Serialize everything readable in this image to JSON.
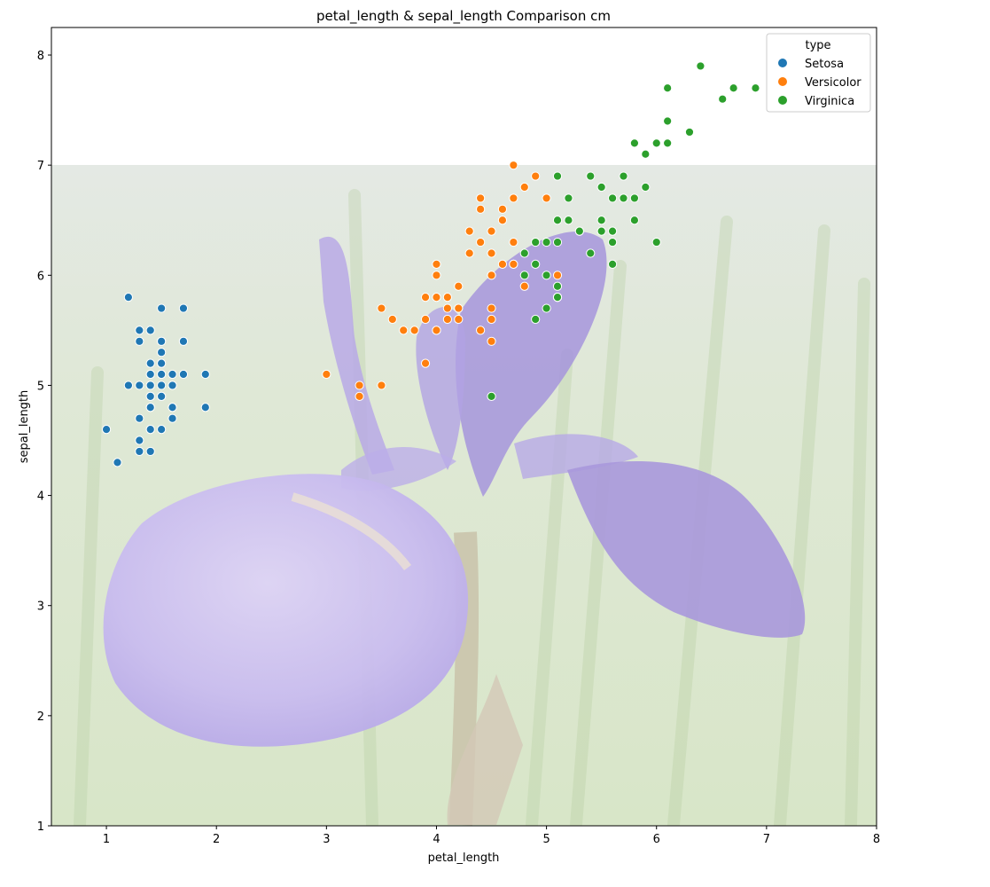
{
  "chart_data": {
    "type": "scatter",
    "title": "petal_length & sepal_length Comparison cm",
    "xlabel": "petal_length",
    "ylabel": "sepal_length",
    "xlim": [
      0.5,
      8
    ],
    "ylim": [
      1,
      8.25
    ],
    "xticks": [
      1,
      2,
      3,
      4,
      5,
      6,
      7,
      8
    ],
    "yticks": [
      1,
      2,
      3,
      4,
      5,
      6,
      7,
      8
    ],
    "grid": false,
    "background_image": "iris flower photo (faded), covering y from 1 to 7",
    "legend": {
      "title": "type",
      "placement": "top-right",
      "entries": [
        "Setosa",
        "Versicolor",
        "Virginica"
      ]
    },
    "series": [
      {
        "name": "Setosa",
        "color": "#1f77b4",
        "points": [
          [
            1.4,
            5.1
          ],
          [
            1.4,
            4.9
          ],
          [
            1.3,
            4.7
          ],
          [
            1.5,
            4.6
          ],
          [
            1.4,
            5.0
          ],
          [
            1.7,
            5.4
          ],
          [
            1.4,
            4.6
          ],
          [
            1.5,
            5.0
          ],
          [
            1.4,
            4.4
          ],
          [
            1.5,
            4.9
          ],
          [
            1.5,
            5.4
          ],
          [
            1.6,
            4.8
          ],
          [
            1.4,
            4.8
          ],
          [
            1.1,
            4.3
          ],
          [
            1.2,
            5.8
          ],
          [
            1.5,
            5.7
          ],
          [
            1.3,
            5.4
          ],
          [
            1.4,
            5.1
          ],
          [
            1.7,
            5.7
          ],
          [
            1.5,
            5.1
          ],
          [
            1.7,
            5.4
          ],
          [
            1.5,
            5.1
          ],
          [
            1.0,
            4.6
          ],
          [
            1.7,
            5.1
          ],
          [
            1.9,
            4.8
          ],
          [
            1.6,
            5.0
          ],
          [
            1.6,
            5.0
          ],
          [
            1.5,
            5.2
          ],
          [
            1.4,
            5.2
          ],
          [
            1.6,
            4.7
          ],
          [
            1.6,
            4.8
          ],
          [
            1.5,
            5.4
          ],
          [
            1.5,
            5.2
          ],
          [
            1.4,
            5.5
          ],
          [
            1.5,
            4.9
          ],
          [
            1.2,
            5.0
          ],
          [
            1.3,
            5.5
          ],
          [
            1.4,
            4.9
          ],
          [
            1.3,
            4.4
          ],
          [
            1.5,
            5.1
          ],
          [
            1.3,
            5.0
          ],
          [
            1.3,
            4.5
          ],
          [
            1.3,
            4.4
          ],
          [
            1.6,
            5.0
          ],
          [
            1.9,
            5.1
          ],
          [
            1.4,
            4.8
          ],
          [
            1.6,
            5.1
          ],
          [
            1.4,
            4.6
          ],
          [
            1.5,
            5.3
          ],
          [
            1.4,
            5.0
          ]
        ]
      },
      {
        "name": "Versicolor",
        "color": "#ff7f0e",
        "points": [
          [
            4.7,
            7.0
          ],
          [
            4.5,
            6.4
          ],
          [
            4.9,
            6.9
          ],
          [
            4.0,
            5.5
          ],
          [
            4.6,
            6.5
          ],
          [
            4.5,
            5.7
          ],
          [
            4.7,
            6.3
          ],
          [
            3.3,
            4.9
          ],
          [
            4.6,
            6.6
          ],
          [
            3.9,
            5.2
          ],
          [
            3.5,
            5.0
          ],
          [
            4.2,
            5.9
          ],
          [
            4.0,
            6.0
          ],
          [
            4.7,
            6.1
          ],
          [
            3.6,
            5.6
          ],
          [
            4.4,
            6.7
          ],
          [
            4.5,
            5.6
          ],
          [
            4.1,
            5.8
          ],
          [
            4.5,
            6.2
          ],
          [
            3.9,
            5.6
          ],
          [
            4.8,
            5.9
          ],
          [
            4.0,
            6.1
          ],
          [
            4.9,
            6.3
          ],
          [
            4.7,
            6.1
          ],
          [
            4.3,
            6.4
          ],
          [
            4.4,
            6.6
          ],
          [
            4.8,
            6.8
          ],
          [
            5.0,
            6.7
          ],
          [
            4.5,
            6.0
          ],
          [
            3.5,
            5.7
          ],
          [
            3.8,
            5.5
          ],
          [
            3.7,
            5.5
          ],
          [
            3.9,
            5.8
          ],
          [
            5.1,
            6.0
          ],
          [
            4.5,
            5.4
          ],
          [
            4.5,
            6.0
          ],
          [
            4.7,
            6.7
          ],
          [
            4.4,
            6.3
          ],
          [
            4.1,
            5.6
          ],
          [
            4.0,
            5.5
          ],
          [
            4.4,
            5.5
          ],
          [
            4.6,
            6.1
          ],
          [
            4.0,
            5.8
          ],
          [
            3.3,
            5.0
          ],
          [
            4.2,
            5.6
          ],
          [
            4.2,
            5.7
          ],
          [
            4.2,
            5.7
          ],
          [
            4.3,
            6.2
          ],
          [
            3.0,
            5.1
          ],
          [
            4.1,
            5.7
          ]
        ]
      },
      {
        "name": "Virginica",
        "color": "#2ca02c",
        "points": [
          [
            6.0,
            6.3
          ],
          [
            5.1,
            5.8
          ],
          [
            5.9,
            7.1
          ],
          [
            5.6,
            6.3
          ],
          [
            5.8,
            6.5
          ],
          [
            6.6,
            7.6
          ],
          [
            4.5,
            4.9
          ],
          [
            6.3,
            7.3
          ],
          [
            5.8,
            6.7
          ],
          [
            6.1,
            7.2
          ],
          [
            5.1,
            6.5
          ],
          [
            5.3,
            6.4
          ],
          [
            5.5,
            6.8
          ],
          [
            5.0,
            5.7
          ],
          [
            5.1,
            5.8
          ],
          [
            5.3,
            6.4
          ],
          [
            5.5,
            6.5
          ],
          [
            6.7,
            7.7
          ],
          [
            6.9,
            7.7
          ],
          [
            5.0,
            6.0
          ],
          [
            5.7,
            6.9
          ],
          [
            4.9,
            5.6
          ],
          [
            6.7,
            7.7
          ],
          [
            4.9,
            6.3
          ],
          [
            5.7,
            6.7
          ],
          [
            6.0,
            7.2
          ],
          [
            4.8,
            6.2
          ],
          [
            4.9,
            6.1
          ],
          [
            5.6,
            6.4
          ],
          [
            5.8,
            7.2
          ],
          [
            6.1,
            7.4
          ],
          [
            6.4,
            7.9
          ],
          [
            5.6,
            6.4
          ],
          [
            5.1,
            6.3
          ],
          [
            5.6,
            6.1
          ],
          [
            6.1,
            7.7
          ],
          [
            5.6,
            6.3
          ],
          [
            5.5,
            6.4
          ],
          [
            4.8,
            6.0
          ],
          [
            5.4,
            6.9
          ],
          [
            5.6,
            6.7
          ],
          [
            5.1,
            6.9
          ],
          [
            5.1,
            5.8
          ],
          [
            5.9,
            6.8
          ],
          [
            5.7,
            6.7
          ],
          [
            5.2,
            6.7
          ],
          [
            5.0,
            6.3
          ],
          [
            5.2,
            6.5
          ],
          [
            5.4,
            6.2
          ],
          [
            5.1,
            5.9
          ]
        ]
      }
    ]
  }
}
